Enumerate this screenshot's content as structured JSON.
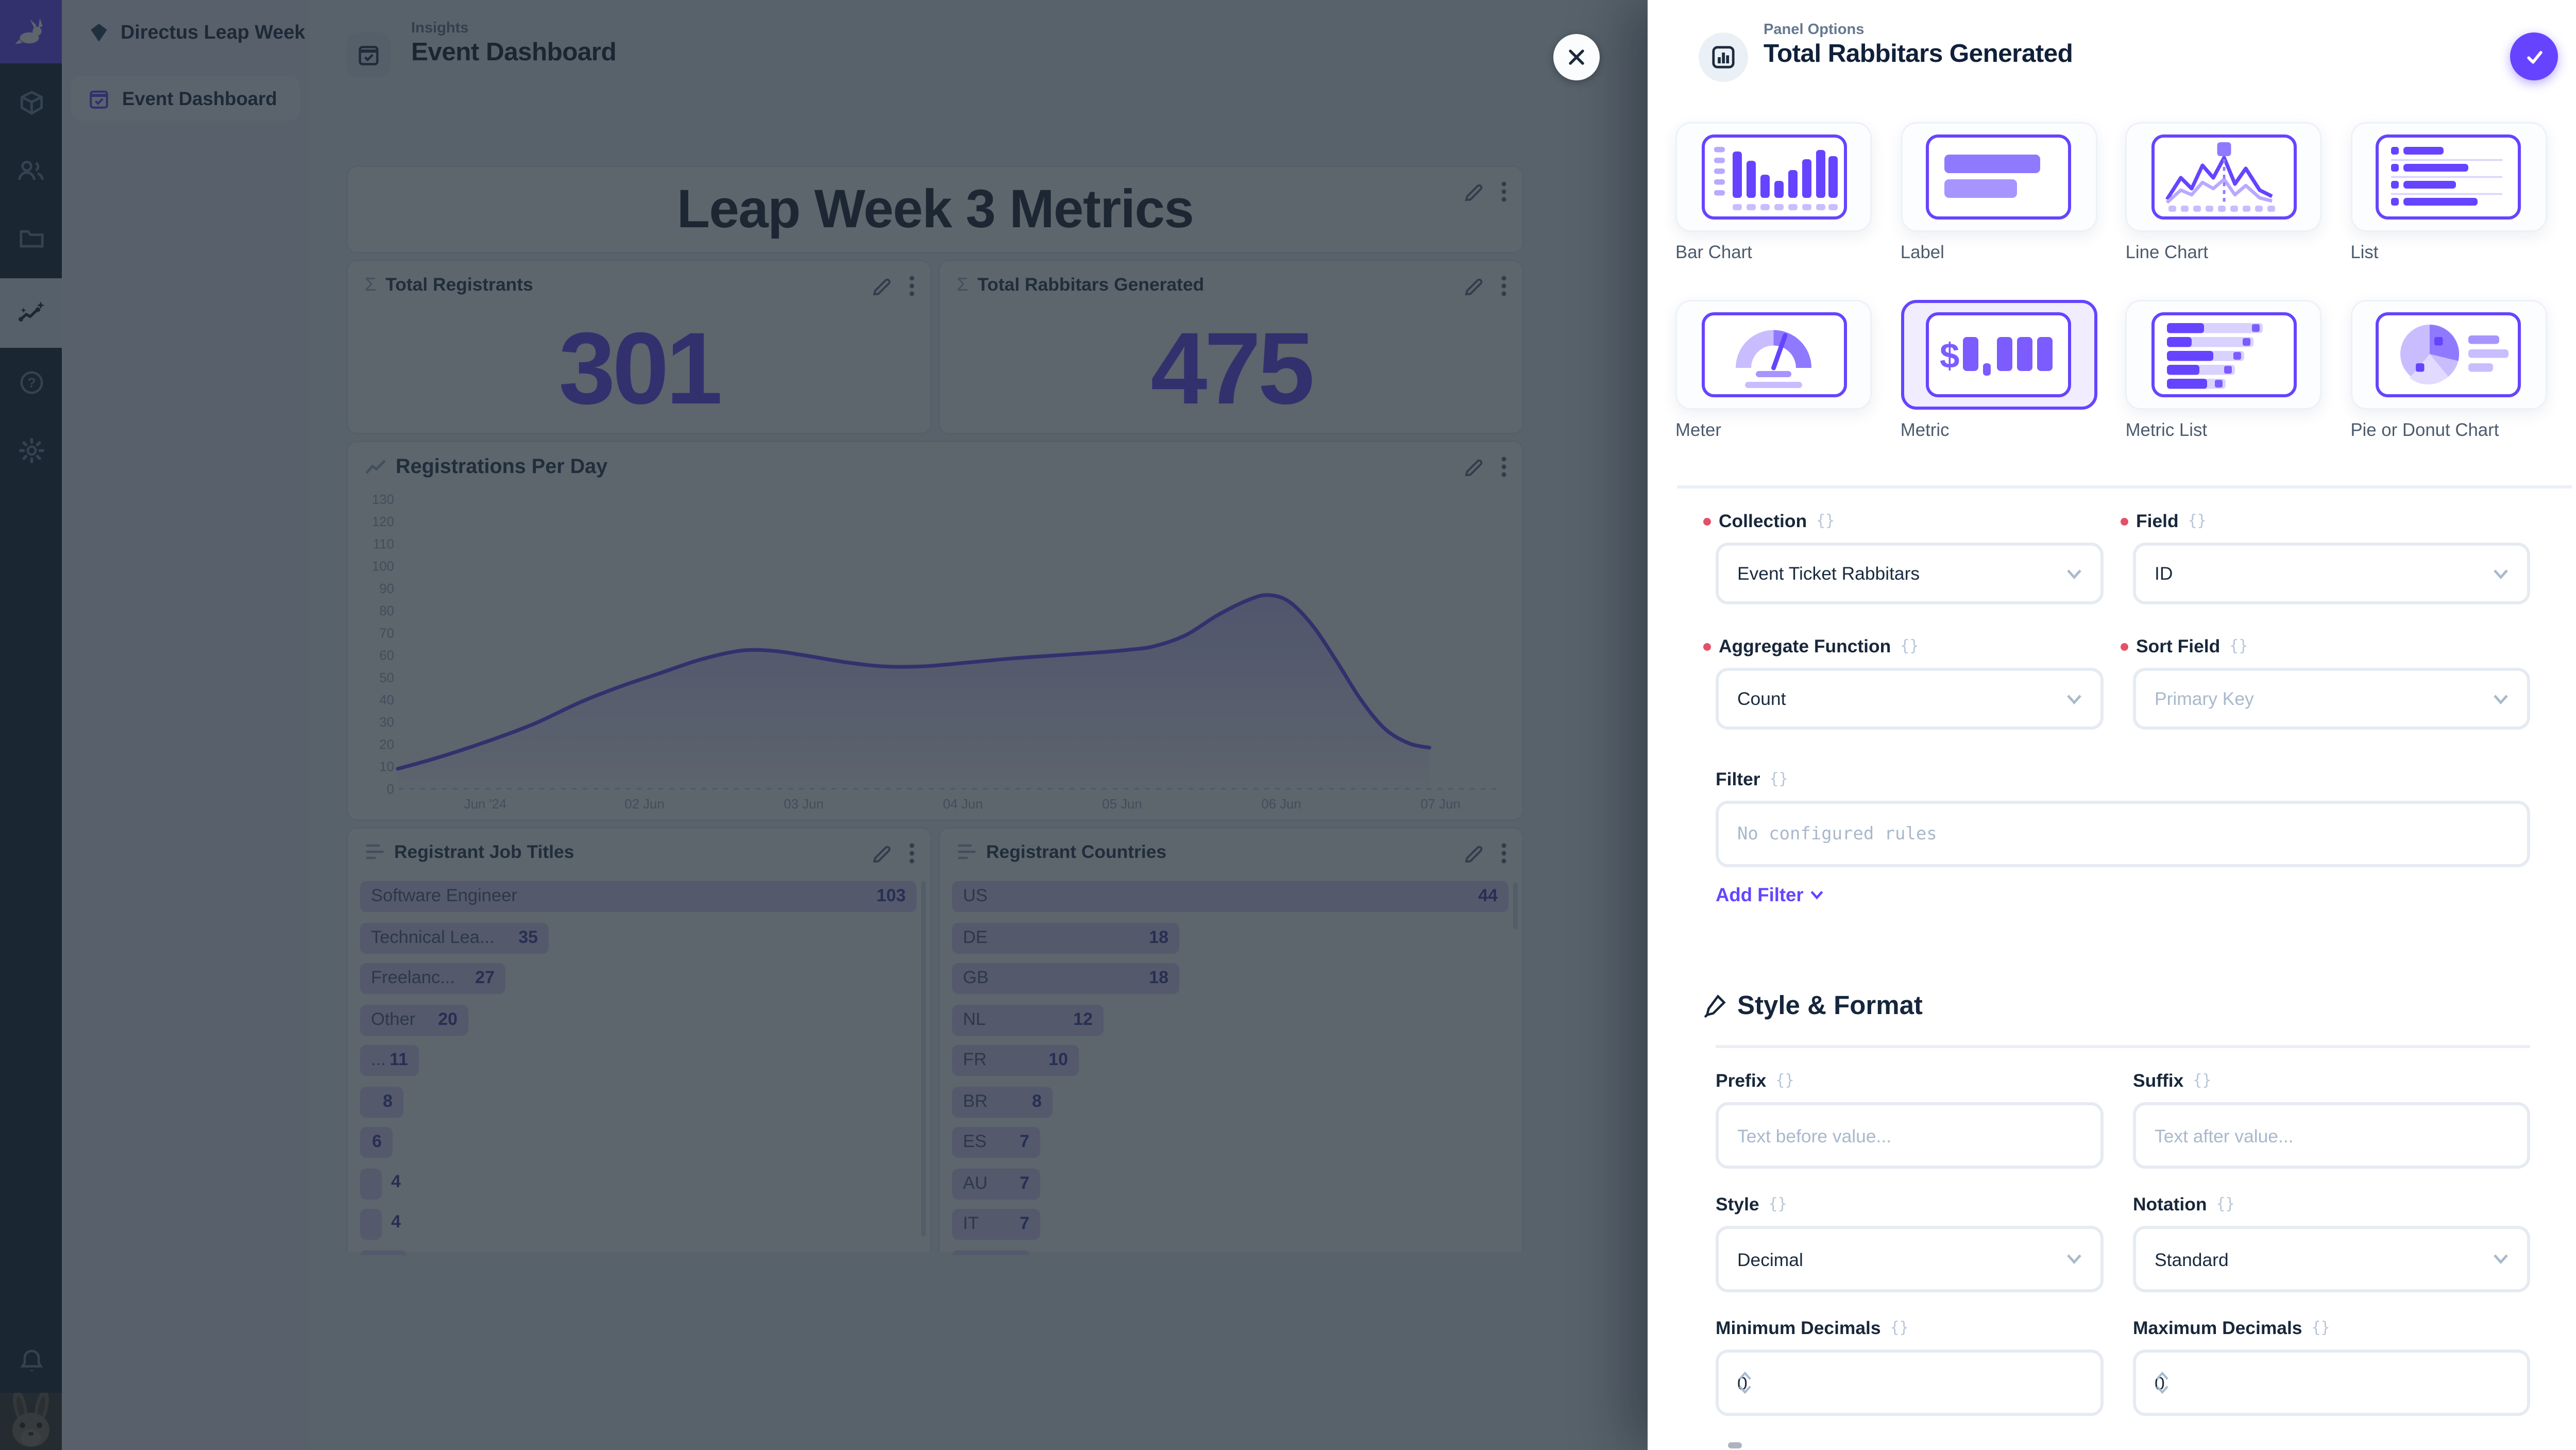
{
  "theme": {
    "primary": "#6644FF",
    "overlay": "rgba(31,41,53,0.72)",
    "bar_fill": "#DDD5FB"
  },
  "module_bar": {
    "logo_icon": "directus-rabbit-logo",
    "module_icons": [
      "content-cube-icon",
      "user-directory-icon",
      "file-library-icon",
      "insights-icon",
      "help-icon",
      "settings-gear-icon"
    ],
    "active_module": "insights",
    "bottom_icons": [
      "notifications-bell-icon",
      "rabbit-avatar"
    ]
  },
  "sidebar": {
    "project_name": "Directus Leap Week",
    "items": [
      {
        "label": "Event Dashboard",
        "active": true
      }
    ]
  },
  "header": {
    "kicker": "Insights",
    "title": "Event Dashboard"
  },
  "dashboard": {
    "title_panel": {
      "title": "Leap Week 3 Metrics"
    },
    "metric_panels": [
      {
        "label": "Total Registrants",
        "value": "301"
      },
      {
        "label": "Total Rabbitars Generated",
        "value": "475"
      }
    ]
  },
  "chart_data": [
    {
      "id": "registrations-per-day",
      "type": "area",
      "title": "Registrations Per Day",
      "x_tick_labels": [
        "Jun '24",
        "02 Jun",
        "03 Jun",
        "04 Jun",
        "05 Jun",
        "06 Jun",
        "07 Jun"
      ],
      "ylim": [
        0,
        130
      ],
      "y_tick_step": 10,
      "grid": false,
      "legend": false,
      "series": [
        {
          "name": "Registrations",
          "points": [
            [
              0.45,
              9
            ],
            [
              0.7,
              14
            ],
            [
              1,
              21
            ],
            [
              1.3,
              29
            ],
            [
              1.6,
              39
            ],
            [
              1.85,
              46
            ],
            [
              2.1,
              52
            ],
            [
              2.35,
              58
            ],
            [
              2.6,
              62
            ],
            [
              2.8,
              62
            ],
            [
              3,
              60
            ],
            [
              3.25,
              57
            ],
            [
              3.5,
              55
            ],
            [
              3.75,
              55
            ],
            [
              4,
              56.5
            ],
            [
              4.3,
              58.5
            ],
            [
              4.6,
              60
            ],
            [
              4.9,
              61.5
            ],
            [
              5.05,
              62.5
            ],
            [
              5.2,
              64
            ],
            [
              5.4,
              69
            ],
            [
              5.6,
              78
            ],
            [
              5.8,
              85
            ],
            [
              5.92,
              87
            ],
            [
              6.05,
              84
            ],
            [
              6.2,
              73
            ],
            [
              6.35,
              57
            ],
            [
              6.5,
              40
            ],
            [
              6.65,
              27
            ],
            [
              6.8,
              20.5
            ],
            [
              6.93,
              18.5
            ]
          ]
        }
      ]
    },
    {
      "id": "registrant-job-titles",
      "type": "bar",
      "orientation": "horizontal",
      "title": "Registrant Job Titles",
      "items": [
        {
          "label": "Software Engineer",
          "value": 103
        },
        {
          "label": "Technical Lea...",
          "value": 35
        },
        {
          "label": "Freelanc...",
          "value": 27
        },
        {
          "label": "Other",
          "value": 20
        },
        {
          "label": "...",
          "value": 11
        },
        {
          "label": "",
          "value": 8
        },
        {
          "label": "",
          "value": 6
        },
        {
          "label": "",
          "value": 4
        },
        {
          "label": "",
          "value": 4
        }
      ]
    },
    {
      "id": "registrant-countries",
      "type": "bar",
      "orientation": "horizontal",
      "title": "Registrant Countries",
      "items": [
        {
          "label": "US",
          "value": 44
        },
        {
          "label": "DE",
          "value": 18
        },
        {
          "label": "GB",
          "value": 18
        },
        {
          "label": "NL",
          "value": 12
        },
        {
          "label": "FR",
          "value": 10
        },
        {
          "label": "BR",
          "value": 8
        },
        {
          "label": "ES",
          "value": 7
        },
        {
          "label": "AU",
          "value": 7
        },
        {
          "label": "IT",
          "value": 7
        }
      ]
    }
  ],
  "drawer": {
    "kicker": "Panel Options",
    "title": "Total Rabbitars Generated",
    "panel_types": [
      {
        "label": "Bar Chart",
        "selected": false
      },
      {
        "label": "Label",
        "selected": false
      },
      {
        "label": "Line Chart",
        "selected": false
      },
      {
        "label": "List",
        "selected": false
      },
      {
        "label": "Meter",
        "selected": false
      },
      {
        "label": "Metric",
        "selected": true
      },
      {
        "label": "Metric List",
        "selected": false
      },
      {
        "label": "Pie or Donut Chart",
        "selected": false
      }
    ],
    "fields": {
      "collection": {
        "label": "Collection",
        "required": true,
        "value": "Event Ticket Rabbitars"
      },
      "field": {
        "label": "Field",
        "required": true,
        "value": "ID"
      },
      "aggregate": {
        "label": "Aggregate Function",
        "required": true,
        "value": "Count"
      },
      "sort": {
        "label": "Sort Field",
        "required": true,
        "placeholder": "Primary Key"
      },
      "filter": {
        "label": "Filter",
        "empty_text": "No configured rules",
        "add_label": "Add Filter"
      }
    },
    "style_format": {
      "heading": "Style & Format",
      "prefix": {
        "label": "Prefix",
        "placeholder": "Text before value..."
      },
      "suffix": {
        "label": "Suffix",
        "placeholder": "Text after value..."
      },
      "style": {
        "label": "Style",
        "value": "Decimal"
      },
      "notation": {
        "label": "Notation",
        "value": "Standard"
      },
      "min_decimals": {
        "label": "Minimum Decimals",
        "value": "0"
      },
      "max_decimals": {
        "label": "Maximum Decimals",
        "value": "0"
      }
    }
  }
}
